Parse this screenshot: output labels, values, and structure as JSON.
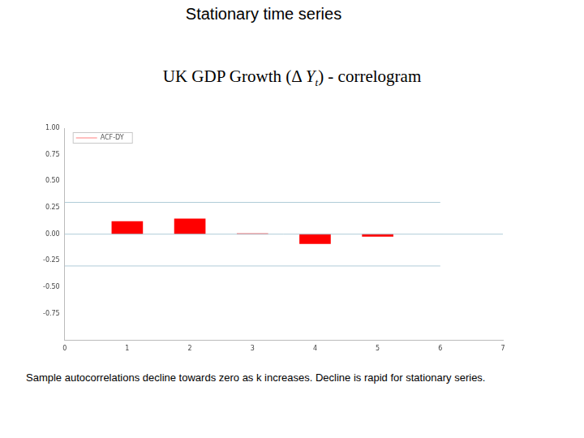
{
  "chart_data": {
    "type": "bar",
    "title": "Stationary time series",
    "subtitle": {
      "before": "UK GDP Growth (Δ ",
      "symbol": "Y",
      "subscript": "t",
      "after": ") - correlogram"
    },
    "caption": "Sample autocorrelations decline towards zero as k increases. Decline is rapid for stationary series.",
    "x": [
      1,
      2,
      3,
      4,
      5
    ],
    "series": [
      {
        "name": "ACF-DY",
        "color": "#ff0000",
        "values": [
          0.12,
          0.145,
          0.005,
          -0.09,
          -0.02
        ]
      }
    ],
    "bands": {
      "y": [
        0.3,
        -0.3
      ],
      "x": [
        0,
        6
      ],
      "color": "#b0ccd8"
    },
    "zero_line": {
      "y": 0,
      "x": [
        0,
        7
      ],
      "color": "#b0ccd8"
    },
    "xlim": [
      0,
      7
    ],
    "xticks": [
      0,
      1,
      2,
      3,
      4,
      5,
      6,
      7
    ],
    "ylim": [
      -1,
      1
    ],
    "yticks": [
      {
        "value": -0.75,
        "label": "-0.75"
      },
      {
        "value": -0.5,
        "label": "-0.50"
      },
      {
        "value": -0.25,
        "label": "-0.25"
      },
      {
        "value": 0,
        "label": "0.00"
      },
      {
        "value": 0.25,
        "label": "0.25"
      },
      {
        "value": 0.5,
        "label": "0.50"
      },
      {
        "value": 0.75,
        "label": "0.75"
      },
      {
        "value": 1,
        "label": "1.00"
      }
    ],
    "grid": false,
    "legend": "upper left"
  }
}
